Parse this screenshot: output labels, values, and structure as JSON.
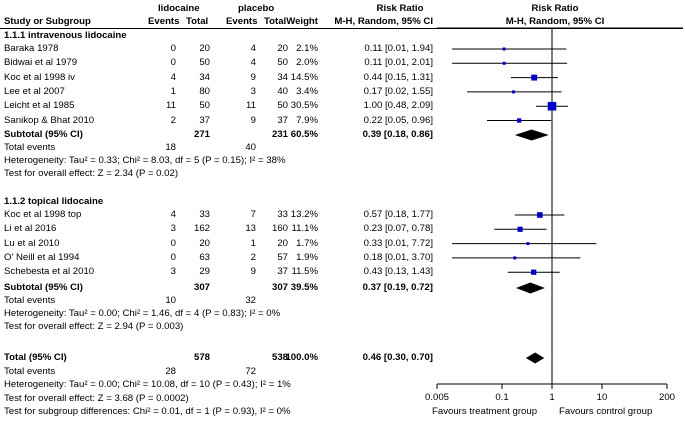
{
  "header": {
    "group1": "lidocaine",
    "group2": "placebo",
    "study": "Study or Subgroup",
    "events1": "Events",
    "total1": "Total",
    "events2": "Events",
    "total2": "Total",
    "weight": "Weight",
    "rr_title": "Risk Ratio",
    "rr_method": "M-H, Random, 95% CI",
    "plot_title": "Risk Ratio",
    "plot_method": "M-H, Random, 95% CI"
  },
  "groups": [
    {
      "title": "1.1.1 intravenous lidocaine",
      "studies": [
        {
          "name": "Baraka 1978",
          "e1": "0",
          "t1": "20",
          "e2": "4",
          "t2": "20",
          "w": "2.1%",
          "ci": "0.11 [0.01, 1.94]",
          "rr": 0.11,
          "lo": 0.01,
          "hi": 1.94,
          "wv": 2.1
        },
        {
          "name": "Bidwai et al 1979",
          "e1": "0",
          "t1": "50",
          "e2": "4",
          "t2": "50",
          "w": "2.0%",
          "ci": "0.11 [0.01, 2.01]",
          "rr": 0.11,
          "lo": 0.01,
          "hi": 2.01,
          "wv": 2.0
        },
        {
          "name": "Koc et al 1998 iv",
          "e1": "4",
          "t1": "34",
          "e2": "9",
          "t2": "34",
          "w": "14.5%",
          "ci": "0.44 [0.15, 1.31]",
          "rr": 0.44,
          "lo": 0.15,
          "hi": 1.31,
          "wv": 14.5
        },
        {
          "name": "Lee et al 2007",
          "e1": "1",
          "t1": "80",
          "e2": "3",
          "t2": "40",
          "w": "3.4%",
          "ci": "0.17 [0.02, 1.55]",
          "rr": 0.17,
          "lo": 0.02,
          "hi": 1.55,
          "wv": 3.4
        },
        {
          "name": "Leicht et al 1985",
          "e1": "11",
          "t1": "50",
          "e2": "11",
          "t2": "50",
          "w": "30.5%",
          "ci": "1.00 [0.48, 2.09]",
          "rr": 1.0,
          "lo": 0.48,
          "hi": 2.09,
          "wv": 30.5
        },
        {
          "name": "Sanikop & Bhat 2010",
          "e1": "2",
          "t1": "37",
          "e2": "9",
          "t2": "37",
          "w": "7.9%",
          "ci": "0.22 [0.05, 0.96]",
          "rr": 0.22,
          "lo": 0.05,
          "hi": 0.96,
          "wv": 7.9
        }
      ],
      "subtotal": {
        "label": "Subtotal (95% CI)",
        "t1": "271",
        "t2": "231",
        "w": "60.5%",
        "ci": "0.39 [0.18, 0.86]",
        "rr": 0.39,
        "lo": 0.18,
        "hi": 0.86
      },
      "events": {
        "label": "Total events",
        "e1": "18",
        "e2": "40"
      },
      "heterogeneity": "Heterogeneity: Tau² = 0.33; Chi² = 8.03, df = 5 (P = 0.15); I² = 38%",
      "overall": "Test for overall effect: Z = 2.34 (P = 0.02)"
    },
    {
      "title": "1.1.2 topical lidocaine",
      "studies": [
        {
          "name": "Koc et al 1998 top",
          "e1": "4",
          "t1": "33",
          "e2": "7",
          "t2": "33",
          "w": "13.2%",
          "ci": "0.57 [0.18, 1.77]",
          "rr": 0.57,
          "lo": 0.18,
          "hi": 1.77,
          "wv": 13.2
        },
        {
          "name": "Li et al 2016",
          "e1": "3",
          "t1": "162",
          "e2": "13",
          "t2": "160",
          "w": "11.1%",
          "ci": "0.23 [0.07, 0.78]",
          "rr": 0.23,
          "lo": 0.07,
          "hi": 0.78,
          "wv": 11.1
        },
        {
          "name": "Lu et al 2010",
          "e1": "0",
          "t1": "20",
          "e2": "1",
          "t2": "20",
          "w": "1.7%",
          "ci": "0.33 [0.01, 7.72]",
          "rr": 0.33,
          "lo": 0.01,
          "hi": 7.72,
          "wv": 1.7
        },
        {
          "name": "O' Neill et al 1994",
          "e1": "0",
          "t1": "63",
          "e2": "2",
          "t2": "57",
          "w": "1.9%",
          "ci": "0.18 [0.01, 3.70]",
          "rr": 0.18,
          "lo": 0.01,
          "hi": 3.7,
          "wv": 1.9
        },
        {
          "name": "Schebesta et al 2010",
          "e1": "3",
          "t1": "29",
          "e2": "9",
          "t2": "37",
          "w": "11.5%",
          "ci": "0.43 [0.13, 1.43]",
          "rr": 0.43,
          "lo": 0.13,
          "hi": 1.43,
          "wv": 11.5
        }
      ],
      "subtotal": {
        "label": "Subtotal (95% CI)",
        "t1": "307",
        "t2": "307",
        "w": "39.5%",
        "ci": "0.37 [0.19, 0.72]",
        "rr": 0.37,
        "lo": 0.19,
        "hi": 0.72
      },
      "events": {
        "label": "Total events",
        "e1": "10",
        "e2": "32"
      },
      "heterogeneity": "Heterogeneity: Tau² = 0.00; Chi² = 1.46, df = 4 (P = 0.83); I² = 0%",
      "overall": "Test for overall effect: Z = 2.94 (P = 0.003)"
    }
  ],
  "total": {
    "label": "Total (95% CI)",
    "t1": "578",
    "t2": "538",
    "w": "100.0%",
    "ci": "0.46 [0.30, 0.70]",
    "rr": 0.46,
    "lo": 0.3,
    "hi": 0.7
  },
  "total_events": {
    "label": "Total events",
    "e1": "28",
    "e2": "72"
  },
  "total_heterogeneity": "Heterogeneity: Tau² = 0.00; Chi² = 10.08, df = 10 (P = 0.43); I² = 1%",
  "total_overall": "Test for overall effect: Z = 3.68 (P = 0.0002)",
  "subgroup_diff": "Test for subgroup differences: Chi² = 0.01, df = 1 (P = 0.93), I² = 0%",
  "chart_data": {
    "type": "forest",
    "scale": "log",
    "xlim": [
      0.005,
      200
    ],
    "ticks": [
      0.005,
      0.1,
      1,
      10,
      200
    ],
    "tick_labels": [
      "0.005",
      "0.1",
      "1",
      "10",
      "200"
    ],
    "null_line": 1,
    "favours_left": "Favours treatment group",
    "favours_right": "Favours control group",
    "marker_color": "#0000c8"
  }
}
